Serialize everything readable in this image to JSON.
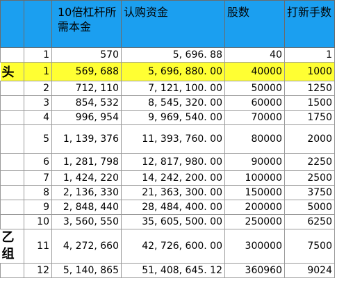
{
  "header": {
    "col_a": "",
    "col_b": "",
    "col_c": "10倍杠杆所需本金",
    "col_d": "认购资金",
    "col_e": "股数",
    "col_f": "打新手数"
  },
  "labels": {
    "head": "头",
    "yi_top": "乙",
    "yi_bottom": "组"
  },
  "rows": [
    {
      "idx": "1",
      "capital": "570",
      "funds": "5, 696. 88",
      "shares": "40",
      "lots": "1"
    },
    {
      "idx": "1",
      "capital": "569, 688",
      "funds": "5, 696, 880. 00",
      "shares": "40000",
      "lots": "1000"
    },
    {
      "idx": "2",
      "capital": "712, 110",
      "funds": "7, 121, 100. 00",
      "shares": "50000",
      "lots": "1250"
    },
    {
      "idx": "3",
      "capital": "854, 532",
      "funds": "8, 545, 320. 00",
      "shares": "60000",
      "lots": "1500"
    },
    {
      "idx": "4",
      "capital": "996, 954",
      "funds": "9, 969, 540. 00",
      "shares": "70000",
      "lots": "1750"
    },
    {
      "idx": "5",
      "capital": "1, 139, 376",
      "funds": "11, 393, 760. 00",
      "shares": "80000",
      "lots": "2000"
    },
    {
      "idx": "6",
      "capital": "1, 281, 798",
      "funds": "12, 817, 980. 00",
      "shares": "90000",
      "lots": "2250"
    },
    {
      "idx": "7",
      "capital": "1, 424, 220",
      "funds": "14, 242, 200. 00",
      "shares": "100000",
      "lots": "2500"
    },
    {
      "idx": "8",
      "capital": "2, 136, 330",
      "funds": "21, 363, 300. 00",
      "shares": "150000",
      "lots": "3750"
    },
    {
      "idx": "9",
      "capital": "2, 848, 440",
      "funds": "28, 484, 400. 00",
      "shares": "200000",
      "lots": "5000"
    },
    {
      "idx": "10",
      "capital": "3, 560, 550",
      "funds": "35, 605, 500. 00",
      "shares": "250000",
      "lots": "6250"
    },
    {
      "idx": "11",
      "capital": "4, 272, 660",
      "funds": "42, 726, 600. 00",
      "shares": "300000",
      "lots": "7500"
    },
    {
      "idx": "12",
      "capital": "5, 140, 865",
      "funds": "51, 408, 645. 12",
      "shares": "360960",
      "lots": "9024"
    }
  ]
}
